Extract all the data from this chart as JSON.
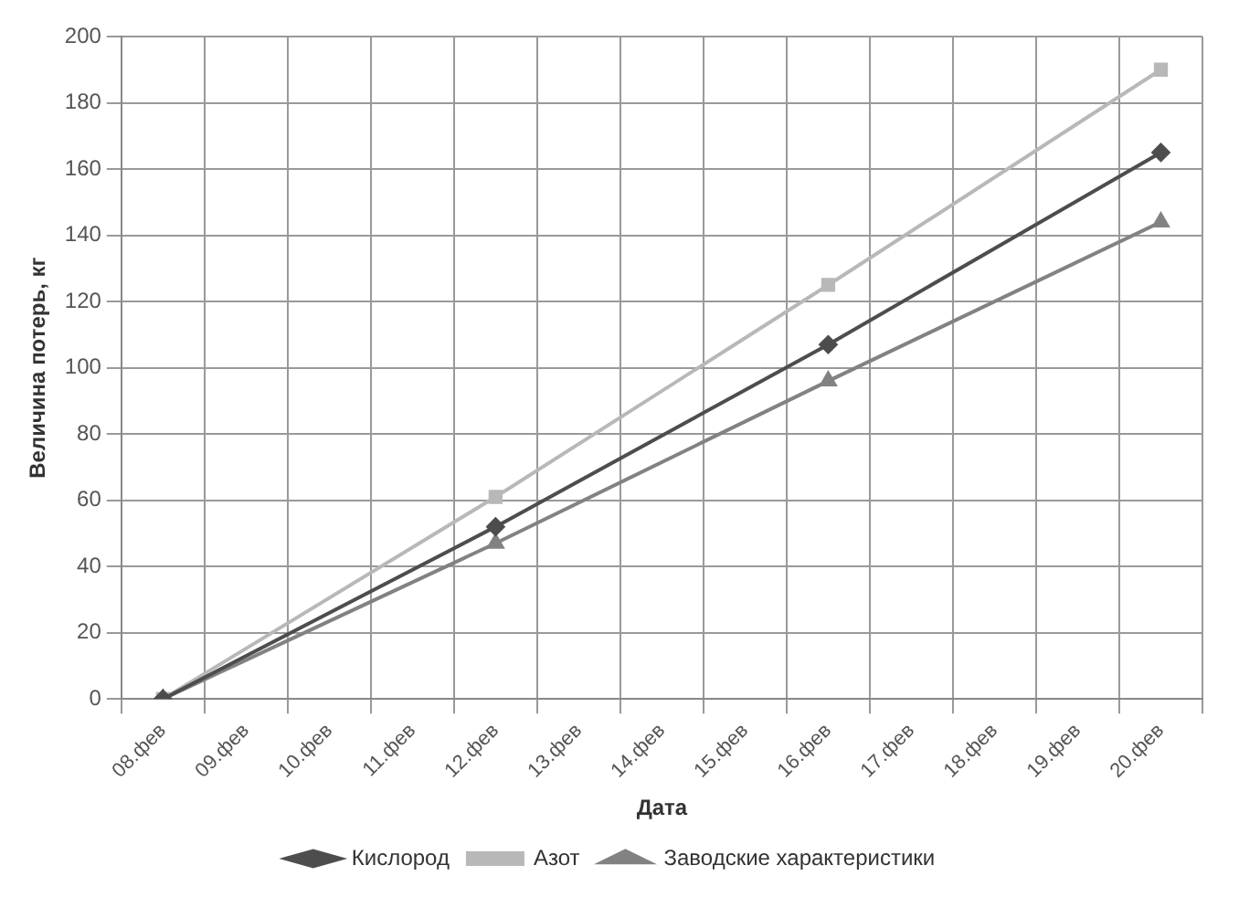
{
  "chart_data": {
    "type": "line",
    "xlabel": "Дата",
    "ylabel": "Величина потерь, кг",
    "categories": [
      "08.фев",
      "09.фев",
      "10.фев",
      "11.фев",
      "12.фев",
      "13.фев",
      "14.фев",
      "15.фев",
      "16.фев",
      "17.фев",
      "18.фев",
      "19.фев",
      "20.фев"
    ],
    "series": [
      {
        "name": "Кислород",
        "color": "#4d4d4d",
        "marker": "diamond",
        "values": [
          0,
          null,
          null,
          null,
          52,
          null,
          null,
          null,
          107,
          null,
          null,
          null,
          165
        ]
      },
      {
        "name": "Азот",
        "color": "#b8b8b8",
        "marker": "square",
        "values": [
          0,
          null,
          null,
          null,
          61,
          null,
          null,
          null,
          125,
          null,
          null,
          null,
          190
        ]
      },
      {
        "name": "Заводские характеристики",
        "color": "#828282",
        "marker": "triangle",
        "values": [
          0,
          null,
          null,
          null,
          47,
          null,
          null,
          null,
          96,
          null,
          null,
          null,
          144
        ]
      }
    ],
    "ylim": [
      0,
      200
    ],
    "yticks": [
      0,
      20,
      40,
      60,
      80,
      100,
      120,
      140,
      160,
      180,
      200
    ],
    "grid": true,
    "legend": "bottom",
    "line_style": "solid"
  }
}
